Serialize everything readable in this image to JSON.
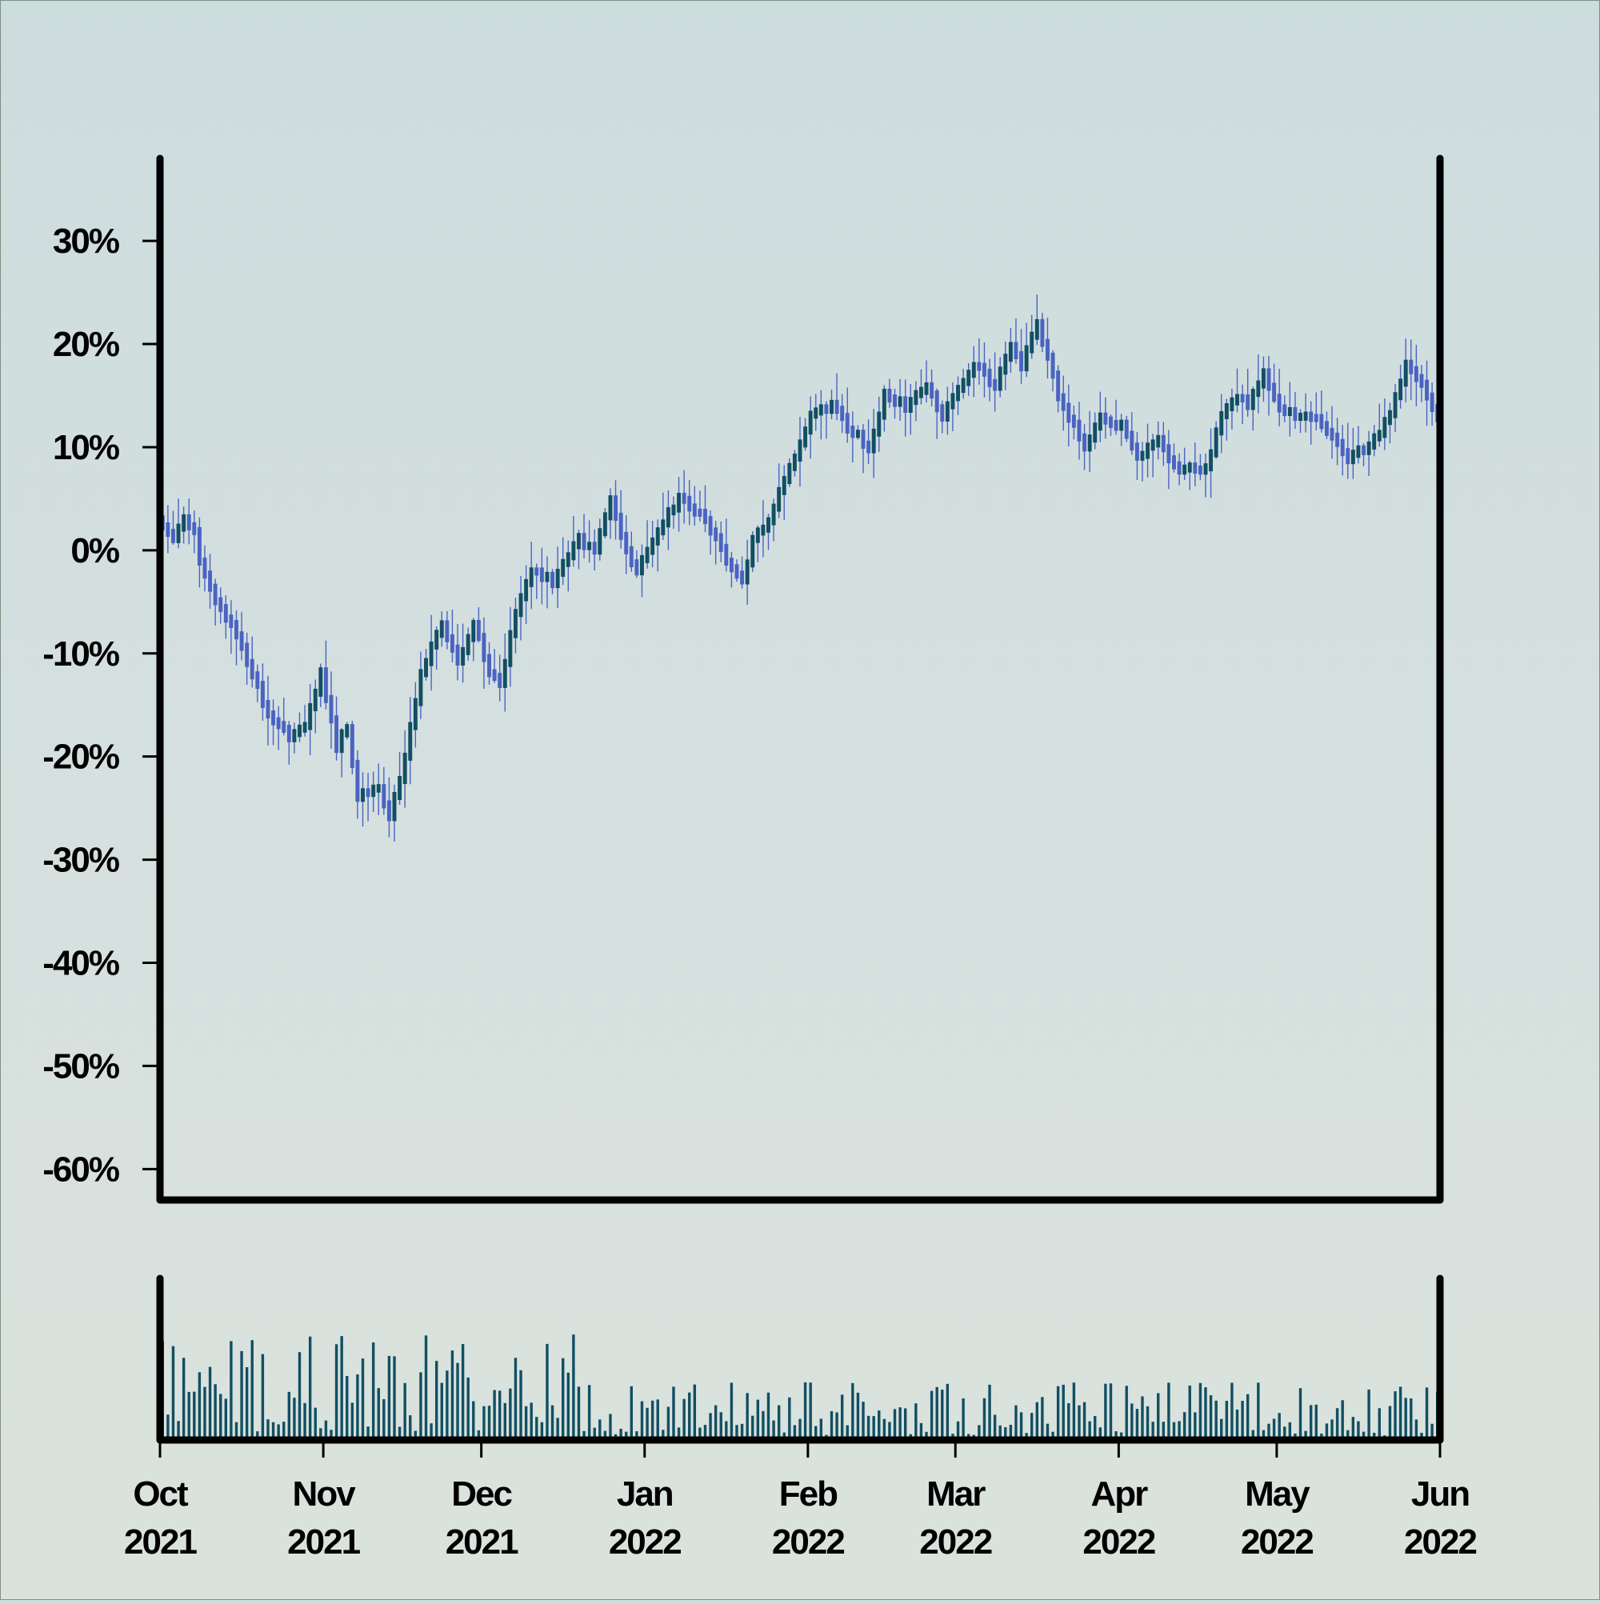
{
  "chart_data": {
    "type": "candlestick",
    "title": "",
    "xlabel": "",
    "ylabel": "",
    "x_range": [
      "2021-10-01",
      "2022-06-01"
    ],
    "ylim": [
      -63,
      38
    ],
    "y_ticks": [
      30,
      20,
      10,
      0,
      -10,
      -20,
      -30,
      -40,
      -50,
      -60
    ],
    "y_tick_labels": [
      "30%",
      "20%",
      "10%",
      "0%",
      "-10%",
      "-20%",
      "-30%",
      "-40%",
      "-50%",
      "-60%"
    ],
    "x_ticks": [
      {
        "date": "2021-10-01",
        "label": [
          "Oct",
          "2021"
        ]
      },
      {
        "date": "2021-11-01",
        "label": [
          "Nov",
          "2021"
        ]
      },
      {
        "date": "2021-12-01",
        "label": [
          "Dec",
          "2021"
        ]
      },
      {
        "date": "2022-01-01",
        "label": [
          "Jan",
          "2022"
        ]
      },
      {
        "date": "2022-02-01",
        "label": [
          "Feb",
          "2022"
        ]
      },
      {
        "date": "2022-03-01",
        "label": [
          "Mar",
          "2022"
        ]
      },
      {
        "date": "2022-04-01",
        "label": [
          "Apr",
          "2022"
        ]
      },
      {
        "date": "2022-05-01",
        "label": [
          "May",
          "2022"
        ]
      },
      {
        "date": "2022-06-01",
        "label": [
          "Jun",
          "2022"
        ]
      }
    ],
    "price_path": [
      [
        "2021-10-01",
        3
      ],
      [
        "2021-10-04",
        1
      ],
      [
        "2021-10-06",
        3
      ],
      [
        "2021-10-08",
        2
      ],
      [
        "2021-10-09",
        -1
      ],
      [
        "2021-10-12",
        -5
      ],
      [
        "2021-10-15",
        -7
      ],
      [
        "2021-10-19",
        -12
      ],
      [
        "2021-10-22",
        -16
      ],
      [
        "2021-10-26",
        -18
      ],
      [
        "2021-10-29",
        -17
      ],
      [
        "2021-11-01",
        -12
      ],
      [
        "2021-11-04",
        -19
      ],
      [
        "2021-11-06",
        -17
      ],
      [
        "2021-11-08",
        -24
      ],
      [
        "2021-11-12",
        -23
      ],
      [
        "2021-11-14",
        -26
      ],
      [
        "2021-11-17",
        -20
      ],
      [
        "2021-11-20",
        -12
      ],
      [
        "2021-11-24",
        -7
      ],
      [
        "2021-11-27",
        -11
      ],
      [
        "2021-11-30",
        -7
      ],
      [
        "2021-12-03",
        -12
      ],
      [
        "2021-12-05",
        -13
      ],
      [
        "2021-12-08",
        -6
      ],
      [
        "2021-12-11",
        -2
      ],
      [
        "2021-12-15",
        -3
      ],
      [
        "2021-12-20",
        1
      ],
      [
        "2021-12-23",
        0
      ],
      [
        "2021-12-26",
        5
      ],
      [
        "2021-12-29",
        0
      ],
      [
        "2021-12-31",
        -2
      ],
      [
        "2022-01-04",
        2
      ],
      [
        "2022-01-08",
        5
      ],
      [
        "2022-01-13",
        3
      ],
      [
        "2022-01-17",
        -1
      ],
      [
        "2022-01-20",
        -3
      ],
      [
        "2022-01-22",
        1
      ],
      [
        "2022-01-25",
        3
      ],
      [
        "2022-01-29",
        8
      ],
      [
        "2022-02-02",
        13
      ],
      [
        "2022-02-06",
        14
      ],
      [
        "2022-02-09",
        12
      ],
      [
        "2022-02-13",
        10
      ],
      [
        "2022-02-16",
        15
      ],
      [
        "2022-02-20",
        14
      ],
      [
        "2022-02-24",
        16
      ],
      [
        "2022-02-27",
        13
      ],
      [
        "2022-03-01",
        15
      ],
      [
        "2022-03-05",
        18
      ],
      [
        "2022-03-09",
        16
      ],
      [
        "2022-03-12",
        20
      ],
      [
        "2022-03-14",
        18
      ],
      [
        "2022-03-17",
        22
      ],
      [
        "2022-03-21",
        15
      ],
      [
        "2022-03-23",
        13
      ],
      [
        "2022-03-26",
        10
      ],
      [
        "2022-03-29",
        13
      ],
      [
        "2022-04-02",
        12
      ],
      [
        "2022-04-05",
        9
      ],
      [
        "2022-04-09",
        11
      ],
      [
        "2022-04-12",
        8
      ],
      [
        "2022-04-18",
        8
      ],
      [
        "2022-04-21",
        13
      ],
      [
        "2022-04-24",
        15
      ],
      [
        "2022-04-26",
        14
      ],
      [
        "2022-04-29",
        17
      ],
      [
        "2022-05-02",
        14
      ],
      [
        "2022-05-05",
        13
      ],
      [
        "2022-05-09",
        13
      ],
      [
        "2022-05-12",
        11
      ],
      [
        "2022-05-15",
        9
      ],
      [
        "2022-05-19",
        10
      ],
      [
        "2022-05-23",
        13
      ],
      [
        "2022-05-26",
        18
      ],
      [
        "2022-05-29",
        16
      ],
      [
        "2022-06-01",
        13
      ]
    ],
    "volume_values": [],
    "colors": {
      "up_candle": "#114f62",
      "down_candle": "#4a63c2",
      "volume_bar": "#114f62",
      "axis": "#000000",
      "background_top": "#cddcdd",
      "background_bottom": "#dbe2dc"
    },
    "grid": false,
    "legend": "none"
  }
}
